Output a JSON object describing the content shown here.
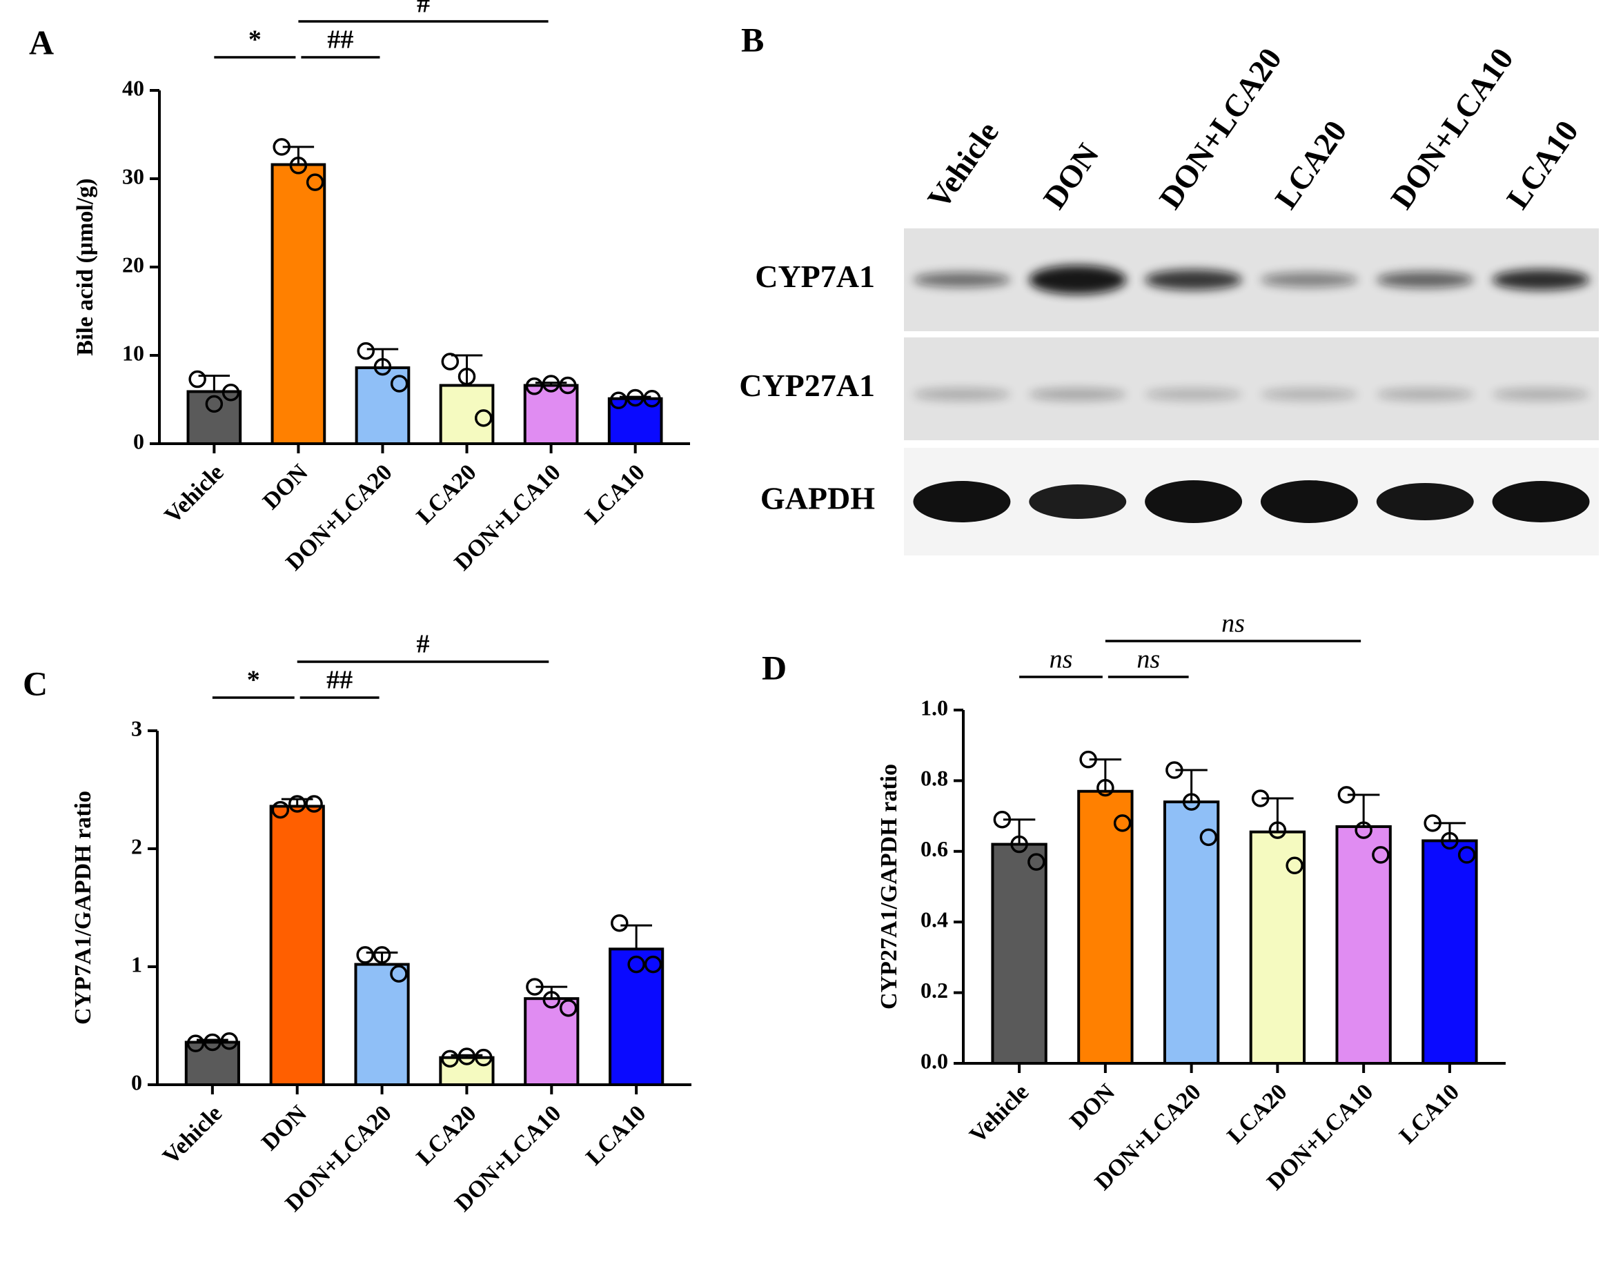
{
  "chart_data": [
    {
      "type": "bar",
      "panel": "A",
      "ylabel": "Bile acid (μmol/g)",
      "categories": [
        "Vehicle",
        "DON",
        "DON+LCA20",
        "LCA20",
        "DON+LCA10",
        "LCA10"
      ],
      "values": [
        5.9,
        31.6,
        8.6,
        6.6,
        6.6,
        5.1
      ],
      "errors": [
        1.8,
        2.0,
        2.1,
        3.4,
        0.3,
        0.2
      ],
      "points": [
        [
          7.3,
          4.5,
          5.8
        ],
        [
          33.6,
          31.5,
          29.6
        ],
        [
          10.5,
          8.7,
          6.8
        ],
        [
          9.3,
          7.6,
          2.9
        ],
        [
          6.5,
          6.8,
          6.6
        ],
        [
          4.9,
          5.2,
          5.1
        ]
      ],
      "colors": [
        "#5a5a5a",
        "#ff8000",
        "#8fbff7",
        "#f5fac0",
        "#e08cf2",
        "#0a0aff"
      ],
      "ylim": [
        0,
        40
      ],
      "yticks": [
        0,
        10,
        20,
        30,
        40
      ],
      "annotations": [
        {
          "text": "*",
          "between": [
            "Vehicle",
            "DON"
          ]
        },
        {
          "text": "##",
          "between": [
            "DON",
            "DON+LCA20"
          ]
        },
        {
          "text": "#",
          "between": [
            "DON",
            "DON+LCA10"
          ]
        }
      ]
    },
    {
      "type": "bar",
      "panel": "C",
      "ylabel": "CYP7A1/GAPDH ratio",
      "categories": [
        "Vehicle",
        "DON",
        "DON+LCA20",
        "LCA20",
        "DON+LCA10",
        "LCA10"
      ],
      "values": [
        0.36,
        2.36,
        1.02,
        0.23,
        0.73,
        1.15
      ],
      "errors": [
        0.02,
        0.06,
        0.1,
        0.02,
        0.1,
        0.2
      ],
      "points": [
        [
          0.35,
          0.36,
          0.37
        ],
        [
          2.33,
          2.38,
          2.38
        ],
        [
          1.1,
          1.1,
          0.94
        ],
        [
          0.22,
          0.24,
          0.23
        ],
        [
          0.83,
          0.72,
          0.65
        ],
        [
          1.37,
          1.02,
          1.02
        ]
      ],
      "colors": [
        "#5a5a5a",
        "#ff5f00",
        "#8fbff7",
        "#f5fac0",
        "#e08cf2",
        "#0a0aff"
      ],
      "ylim": [
        0,
        3
      ],
      "yticks": [
        0,
        1,
        2,
        3
      ],
      "annotations": [
        {
          "text": "*",
          "between": [
            "Vehicle",
            "DON"
          ]
        },
        {
          "text": "##",
          "between": [
            "DON",
            "DON+LCA20"
          ]
        },
        {
          "text": "#",
          "between": [
            "DON",
            "DON+LCA10"
          ]
        }
      ]
    },
    {
      "type": "bar",
      "panel": "D",
      "ylabel": "CYP27A1/GAPDH ratio",
      "categories": [
        "Vehicle",
        "DON",
        "DON+LCA20",
        "LCA20",
        "DON+LCA10",
        "LCA10"
      ],
      "values": [
        0.62,
        0.77,
        0.74,
        0.655,
        0.67,
        0.63
      ],
      "errors": [
        0.07,
        0.09,
        0.09,
        0.095,
        0.09,
        0.05
      ],
      "points": [
        [
          0.69,
          0.62,
          0.57
        ],
        [
          0.86,
          0.78,
          0.68
        ],
        [
          0.83,
          0.74,
          0.64
        ],
        [
          0.75,
          0.66,
          0.56
        ],
        [
          0.76,
          0.66,
          0.59
        ],
        [
          0.68,
          0.63,
          0.59
        ]
      ],
      "colors": [
        "#5a5a5a",
        "#ff8000",
        "#8fbff7",
        "#f5fac0",
        "#e08cf2",
        "#0a0aff"
      ],
      "ylim": [
        0,
        1
      ],
      "yticks": [
        {
          "value": 0,
          "label": "0.0"
        },
        0.2,
        0.4,
        0.6,
        0.8,
        {
          "value": 1,
          "label": "1.0"
        }
      ],
      "annotations": [
        {
          "text": "ns",
          "between": [
            "Vehicle",
            "DON"
          ]
        },
        {
          "text": "ns",
          "between": [
            "DON",
            "DON+LCA20"
          ]
        },
        {
          "text": "ns",
          "between": [
            "DON",
            "DON+LCA10"
          ]
        }
      ]
    }
  ],
  "blot": {
    "panel": "B",
    "lanes": [
      "Vehicle",
      "DON",
      "DON+LCA20",
      "LCA20",
      "DON+LCA10",
      "LCA10"
    ],
    "rows": [
      "CYP7A1",
      "CYP27A1",
      "GAPDH"
    ]
  }
}
